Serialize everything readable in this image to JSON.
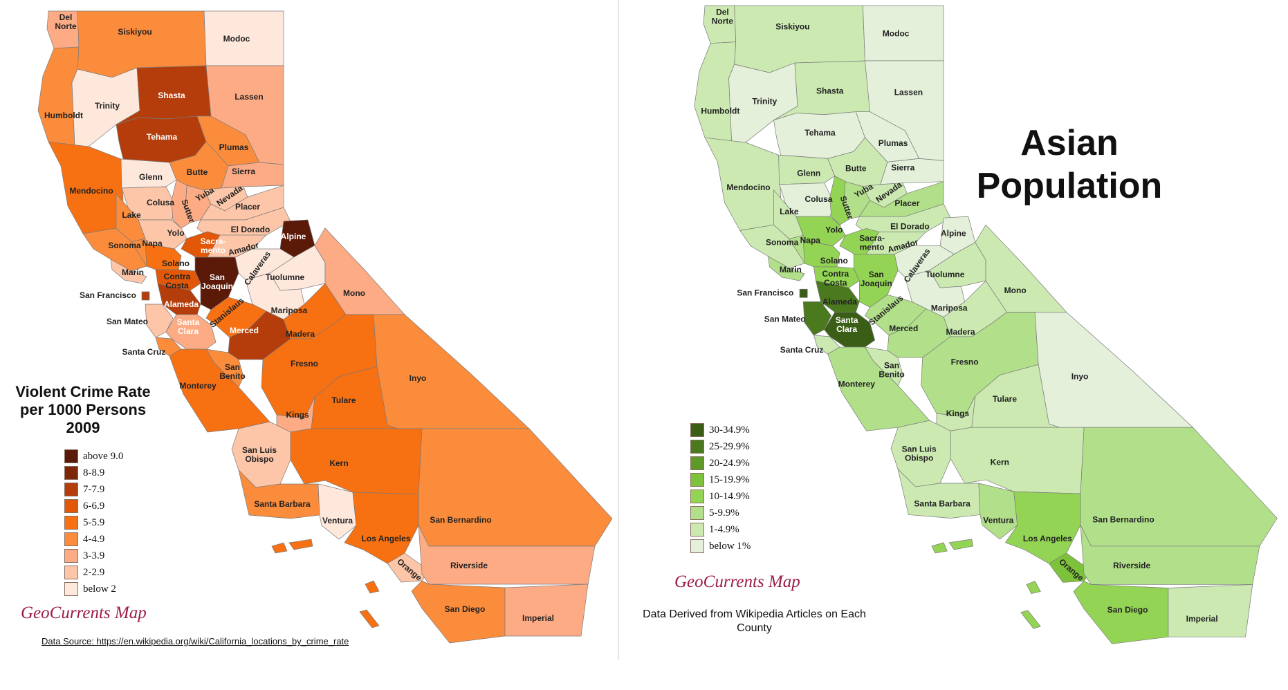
{
  "crime_map": {
    "title_lines": [
      "Violent Crime Rate",
      "per 1000 Persons",
      "2009"
    ],
    "legend": [
      {
        "label": "above 9.0",
        "color": "#5b1a08"
      },
      {
        "label": "8-8.9",
        "color": "#7d2708"
      },
      {
        "label": "7-7.9",
        "color": "#b43d0b"
      },
      {
        "label": "6-6.9",
        "color": "#e25808"
      },
      {
        "label": "5-5.9",
        "color": "#f77012"
      },
      {
        "label": "4-4.9",
        "color": "#fb8c3c"
      },
      {
        "label": "3-3.9",
        "color": "#fcab84"
      },
      {
        "label": "2-2.9",
        "color": "#fdc6a8"
      },
      {
        "label": "below 2",
        "color": "#fee8dc"
      }
    ],
    "brand": "GeoCurrents Map",
    "source": "Data Source: https://en.wikipedia.org/wiki/California_locations_by_crime_rate",
    "counties": [
      {
        "name": "Del Norte",
        "lines": [
          "Del",
          "Norte"
        ],
        "class": "3-3.9"
      },
      {
        "name": "Siskiyou",
        "lines": [
          "Siskiyou"
        ],
        "class": "4-4.9"
      },
      {
        "name": "Modoc",
        "lines": [
          "Modoc"
        ],
        "class": "below 2"
      },
      {
        "name": "Humboldt",
        "lines": [
          "Humboldt"
        ],
        "class": "4-4.9"
      },
      {
        "name": "Trinity",
        "lines": [
          "Trinity"
        ],
        "class": "below 2"
      },
      {
        "name": "Shasta",
        "lines": [
          "Shasta"
        ],
        "class": "7-7.9"
      },
      {
        "name": "Lassen",
        "lines": [
          "Lassen"
        ],
        "class": "3-3.9"
      },
      {
        "name": "Tehama",
        "lines": [
          "Tehama"
        ],
        "class": "7-7.9"
      },
      {
        "name": "Plumas",
        "lines": [
          "Plumas"
        ],
        "class": "4-4.9"
      },
      {
        "name": "Mendocino",
        "lines": [
          "Mendocino"
        ],
        "class": "5-5.9"
      },
      {
        "name": "Glenn",
        "lines": [
          "Glenn"
        ],
        "class": "below 2"
      },
      {
        "name": "Butte",
        "lines": [
          "Butte"
        ],
        "class": "4-4.9"
      },
      {
        "name": "Sierra",
        "lines": [
          "Sierra"
        ],
        "class": "3-3.9"
      },
      {
        "name": "Colusa",
        "lines": [
          "Colusa"
        ],
        "class": "2-2.9"
      },
      {
        "name": "Yuba",
        "lines": [
          "Yuba"
        ],
        "class": "3-3.9"
      },
      {
        "name": "Nevada",
        "lines": [
          "Nevada"
        ],
        "class": "2-2.9"
      },
      {
        "name": "Sutter",
        "lines": [
          "Sutter"
        ],
        "class": "3-3.9"
      },
      {
        "name": "Placer",
        "lines": [
          "Placer"
        ],
        "class": "2-2.9"
      },
      {
        "name": "Lake",
        "lines": [
          "Lake"
        ],
        "class": "4-4.9"
      },
      {
        "name": "Yolo",
        "lines": [
          "Yolo"
        ],
        "class": "2-2.9"
      },
      {
        "name": "El Dorado",
        "lines": [
          "El Dorado"
        ],
        "class": "2-2.9"
      },
      {
        "name": "Alpine",
        "lines": [
          "Alpine"
        ],
        "class": "above 9.0"
      },
      {
        "name": "Sonoma",
        "lines": [
          "Sonoma"
        ],
        "class": "4-4.9"
      },
      {
        "name": "Napa",
        "lines": [
          "Napa"
        ],
        "class": "4-4.9"
      },
      {
        "name": "Sacramento",
        "lines": [
          "Sacra-",
          "mento"
        ],
        "class": "6-6.9"
      },
      {
        "name": "Amador",
        "lines": [
          "Amador"
        ],
        "class": "2-2.9"
      },
      {
        "name": "Marin",
        "lines": [
          "Marin"
        ],
        "class": "2-2.9"
      },
      {
        "name": "Solano",
        "lines": [
          "Solano"
        ],
        "class": "5-5.9"
      },
      {
        "name": "Calaveras",
        "lines": [
          "Calaveras"
        ],
        "class": "below 2"
      },
      {
        "name": "Tuolumne",
        "lines": [
          "Tuolumne"
        ],
        "class": "below 2"
      },
      {
        "name": "Contra Costa",
        "lines": [
          "Contra",
          "Costa"
        ],
        "class": "6-6.9"
      },
      {
        "name": "San Joaquin",
        "lines": [
          "San",
          "Joaquin"
        ],
        "class": "above 9.0"
      },
      {
        "name": "Mono",
        "lines": [
          "Mono"
        ],
        "class": "3-3.9"
      },
      {
        "name": "San Francisco",
        "lines": [
          "San Francisco"
        ],
        "class": "7-7.9"
      },
      {
        "name": "Alameda",
        "lines": [
          "Alameda"
        ],
        "class": "7-7.9"
      },
      {
        "name": "Stanislaus",
        "lines": [
          "Stanislaus"
        ],
        "class": "5-5.9"
      },
      {
        "name": "Mariposa",
        "lines": [
          "Mariposa"
        ],
        "class": "below 2"
      },
      {
        "name": "San Mateo",
        "lines": [
          "San Mateo"
        ],
        "class": "2-2.9"
      },
      {
        "name": "Santa Clara",
        "lines": [
          "Santa",
          "Clara"
        ],
        "class": "3-3.9"
      },
      {
        "name": "Merced",
        "lines": [
          "Merced"
        ],
        "class": "7-7.9"
      },
      {
        "name": "Madera",
        "lines": [
          "Madera"
        ],
        "class": "5-5.9"
      },
      {
        "name": "Santa Cruz",
        "lines": [
          "Santa Cruz"
        ],
        "class": "4-4.9"
      },
      {
        "name": "Fresno",
        "lines": [
          "Fresno"
        ],
        "class": "5-5.9"
      },
      {
        "name": "Inyo",
        "lines": [
          "Inyo"
        ],
        "class": "4-4.9"
      },
      {
        "name": "Monterey",
        "lines": [
          "Monterey"
        ],
        "class": "5-5.9"
      },
      {
        "name": "San Benito",
        "lines": [
          "San",
          "Benito"
        ],
        "class": "4-4.9"
      },
      {
        "name": "Tulare",
        "lines": [
          "Tulare"
        ],
        "class": "5-5.9"
      },
      {
        "name": "Kings",
        "lines": [
          "Kings"
        ],
        "class": "3-3.9"
      },
      {
        "name": "San Luis Obispo",
        "lines": [
          "San Luis",
          "Obispo"
        ],
        "class": "2-2.9"
      },
      {
        "name": "Kern",
        "lines": [
          "Kern"
        ],
        "class": "5-5.9"
      },
      {
        "name": "Santa Barbara",
        "lines": [
          "Santa Barbara"
        ],
        "class": "4-4.9"
      },
      {
        "name": "Ventura",
        "lines": [
          "Ventura"
        ],
        "class": "below 2"
      },
      {
        "name": "San Bernardino",
        "lines": [
          "San Bernardino"
        ],
        "class": "4-4.9"
      },
      {
        "name": "Los Angeles",
        "lines": [
          "Los Angeles"
        ],
        "class": "5-5.9"
      },
      {
        "name": "Orange",
        "lines": [
          "Orange"
        ],
        "class": "2-2.9"
      },
      {
        "name": "Riverside",
        "lines": [
          "Riverside"
        ],
        "class": "3-3.9"
      },
      {
        "name": "San Diego",
        "lines": [
          "San Diego"
        ],
        "class": "4-4.9"
      },
      {
        "name": "Imperial",
        "lines": [
          "Imperial"
        ],
        "class": "3-3.9"
      }
    ]
  },
  "asian_map": {
    "title_lines": [
      "Asian",
      "Population"
    ],
    "legend": [
      {
        "label": "30-34.9%",
        "color": "#3a5e16"
      },
      {
        "label": "25-29.9%",
        "color": "#4b7a1e"
      },
      {
        "label": "20-24.9%",
        "color": "#5d9a27"
      },
      {
        "label": "15-19.9%",
        "color": "#7cc23a"
      },
      {
        "label": "10-14.9%",
        "color": "#93d454"
      },
      {
        "label": "5-9.9%",
        "color": "#b2e08a"
      },
      {
        "label": "1-4.9%",
        "color": "#cbe9b1"
      },
      {
        "label": "below 1%",
        "color": "#e4f0da"
      }
    ],
    "brand": "GeoCurrents Map",
    "derived_note": "Data Derived from Wikipedia Articles on Each County",
    "counties": [
      {
        "name": "Del Norte",
        "lines": [
          "Del",
          "Norte"
        ],
        "class": "1-4.9%"
      },
      {
        "name": "Siskiyou",
        "lines": [
          "Siskiyou"
        ],
        "class": "1-4.9%"
      },
      {
        "name": "Modoc",
        "lines": [
          "Modoc"
        ],
        "class": "below 1%"
      },
      {
        "name": "Humboldt",
        "lines": [
          "Humboldt"
        ],
        "class": "1-4.9%"
      },
      {
        "name": "Trinity",
        "lines": [
          "Trinity"
        ],
        "class": "below 1%"
      },
      {
        "name": "Shasta",
        "lines": [
          "Shasta"
        ],
        "class": "1-4.9%"
      },
      {
        "name": "Lassen",
        "lines": [
          "Lassen"
        ],
        "class": "below 1%"
      },
      {
        "name": "Tehama",
        "lines": [
          "Tehama"
        ],
        "class": "below 1%"
      },
      {
        "name": "Plumas",
        "lines": [
          "Plumas"
        ],
        "class": "below 1%"
      },
      {
        "name": "Mendocino",
        "lines": [
          "Mendocino"
        ],
        "class": "1-4.9%"
      },
      {
        "name": "Glenn",
        "lines": [
          "Glenn"
        ],
        "class": "1-4.9%"
      },
      {
        "name": "Butte",
        "lines": [
          "Butte"
        ],
        "class": "1-4.9%"
      },
      {
        "name": "Sierra",
        "lines": [
          "Sierra"
        ],
        "class": "below 1%"
      },
      {
        "name": "Colusa",
        "lines": [
          "Colusa"
        ],
        "class": "below 1%"
      },
      {
        "name": "Yuba",
        "lines": [
          "Yuba"
        ],
        "class": "5-9.9%"
      },
      {
        "name": "Nevada",
        "lines": [
          "Nevada"
        ],
        "class": "1-4.9%"
      },
      {
        "name": "Sutter",
        "lines": [
          "Sutter"
        ],
        "class": "10-14.9%"
      },
      {
        "name": "Placer",
        "lines": [
          "Placer"
        ],
        "class": "5-9.9%"
      },
      {
        "name": "Lake",
        "lines": [
          "Lake"
        ],
        "class": "1-4.9%"
      },
      {
        "name": "Yolo",
        "lines": [
          "Yolo"
        ],
        "class": "10-14.9%"
      },
      {
        "name": "El Dorado",
        "lines": [
          "El Dorado"
        ],
        "class": "1-4.9%"
      },
      {
        "name": "Alpine",
        "lines": [
          "Alpine"
        ],
        "class": "below 1%"
      },
      {
        "name": "Sonoma",
        "lines": [
          "Sonoma"
        ],
        "class": "1-4.9%"
      },
      {
        "name": "Napa",
        "lines": [
          "Napa"
        ],
        "class": "5-9.9%"
      },
      {
        "name": "Sacramento",
        "lines": [
          "Sacra-",
          "mento"
        ],
        "class": "10-14.9%"
      },
      {
        "name": "Amador",
        "lines": [
          "Amador"
        ],
        "class": "1-4.9%"
      },
      {
        "name": "Marin",
        "lines": [
          "Marin"
        ],
        "class": "5-9.9%"
      },
      {
        "name": "Solano",
        "lines": [
          "Solano"
        ],
        "class": "10-14.9%"
      },
      {
        "name": "Calaveras",
        "lines": [
          "Calaveras"
        ],
        "class": "below 1%"
      },
      {
        "name": "Tuolumne",
        "lines": [
          "Tuolumne"
        ],
        "class": "1-4.9%"
      },
      {
        "name": "Contra Costa",
        "lines": [
          "Contra",
          "Costa"
        ],
        "class": "10-14.9%"
      },
      {
        "name": "San Joaquin",
        "lines": [
          "San",
          "Joaquin"
        ],
        "class": "10-14.9%"
      },
      {
        "name": "Mono",
        "lines": [
          "Mono"
        ],
        "class": "1-4.9%"
      },
      {
        "name": "San Francisco",
        "lines": [
          "San Francisco"
        ],
        "class": "30-34.9%"
      },
      {
        "name": "Alameda",
        "lines": [
          "Alameda"
        ],
        "class": "25-29.9%"
      },
      {
        "name": "Stanislaus",
        "lines": [
          "Stanislaus"
        ],
        "class": "5-9.9%"
      },
      {
        "name": "Mariposa",
        "lines": [
          "Mariposa"
        ],
        "class": "below 1%"
      },
      {
        "name": "San Mateo",
        "lines": [
          "San Mateo"
        ],
        "class": "25-29.9%"
      },
      {
        "name": "Santa Clara",
        "lines": [
          "Santa",
          "Clara"
        ],
        "class": "30-34.9%"
      },
      {
        "name": "Merced",
        "lines": [
          "Merced"
        ],
        "class": "5-9.9%"
      },
      {
        "name": "Madera",
        "lines": [
          "Madera"
        ],
        "class": "1-4.9%"
      },
      {
        "name": "Santa Cruz",
        "lines": [
          "Santa Cruz"
        ],
        "class": "1-4.9%"
      },
      {
        "name": "Fresno",
        "lines": [
          "Fresno"
        ],
        "class": "5-9.9%"
      },
      {
        "name": "Inyo",
        "lines": [
          "Inyo"
        ],
        "class": "below 1%"
      },
      {
        "name": "Monterey",
        "lines": [
          "Monterey"
        ],
        "class": "5-9.9%"
      },
      {
        "name": "San Benito",
        "lines": [
          "San",
          "Benito"
        ],
        "class": "1-4.9%"
      },
      {
        "name": "Tulare",
        "lines": [
          "Tulare"
        ],
        "class": "1-4.9%"
      },
      {
        "name": "Kings",
        "lines": [
          "Kings"
        ],
        "class": "1-4.9%"
      },
      {
        "name": "San Luis Obispo",
        "lines": [
          "San Luis",
          "Obispo"
        ],
        "class": "1-4.9%"
      },
      {
        "name": "Kern",
        "lines": [
          "Kern"
        ],
        "class": "1-4.9%"
      },
      {
        "name": "Santa Barbara",
        "lines": [
          "Santa Barbara"
        ],
        "class": "1-4.9%"
      },
      {
        "name": "Ventura",
        "lines": [
          "Ventura"
        ],
        "class": "5-9.9%"
      },
      {
        "name": "San Bernardino",
        "lines": [
          "San Bernardino"
        ],
        "class": "5-9.9%"
      },
      {
        "name": "Los Angeles",
        "lines": [
          "Los Angeles"
        ],
        "class": "10-14.9%"
      },
      {
        "name": "Orange",
        "lines": [
          "Orange"
        ],
        "class": "15-19.9%"
      },
      {
        "name": "Riverside",
        "lines": [
          "Riverside"
        ],
        "class": "5-9.9%"
      },
      {
        "name": "San Diego",
        "lines": [
          "San Diego"
        ],
        "class": "10-14.9%"
      },
      {
        "name": "Imperial",
        "lines": [
          "Imperial"
        ],
        "class": "1-4.9%"
      }
    ]
  }
}
